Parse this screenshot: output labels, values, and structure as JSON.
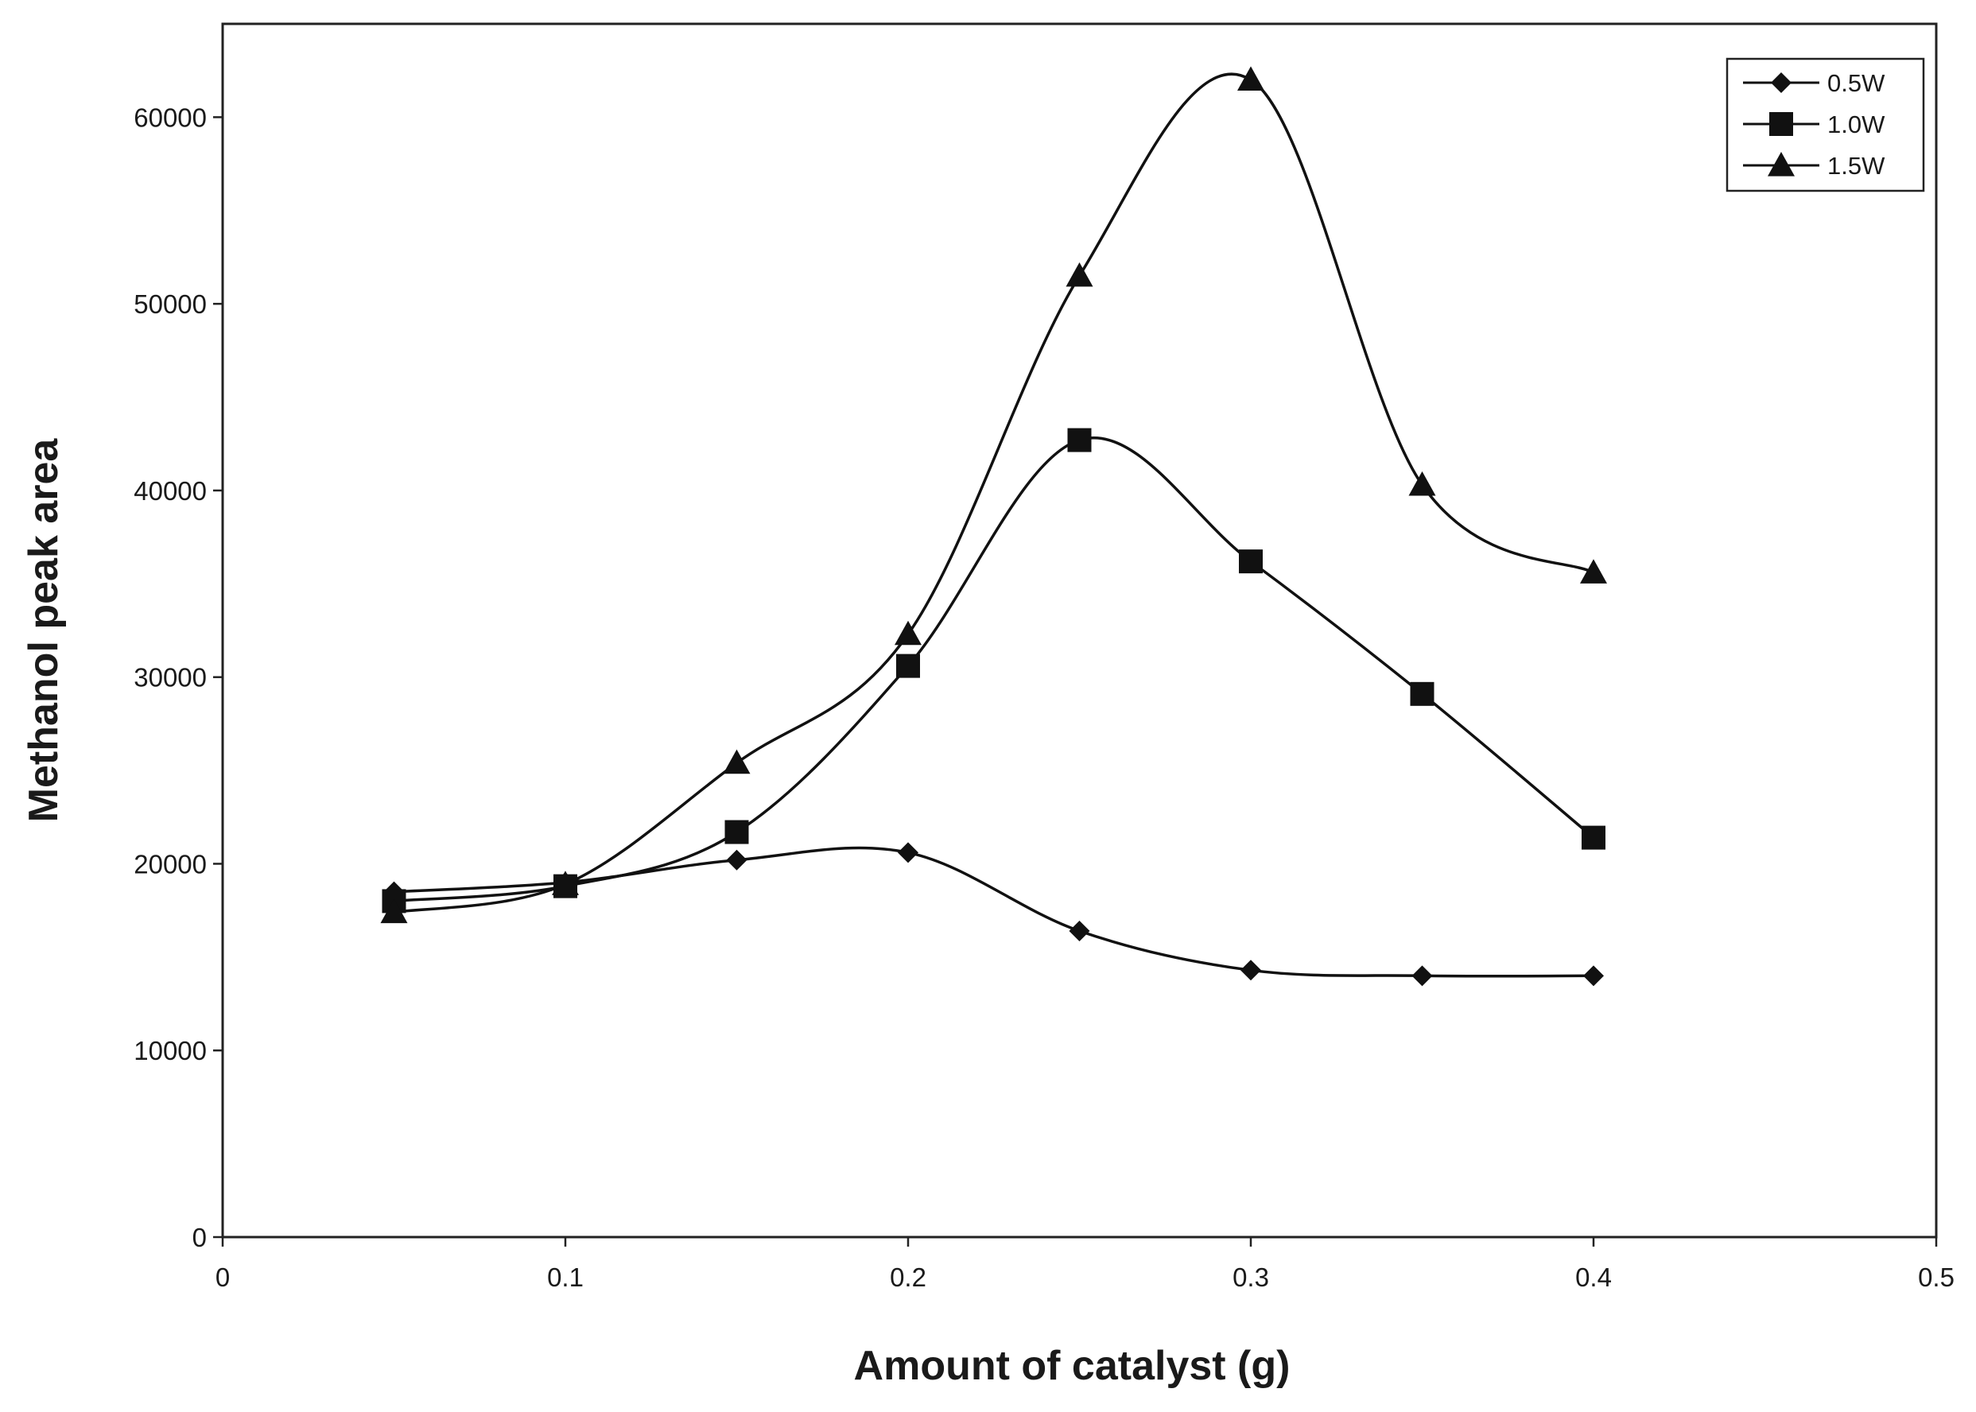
{
  "chart_data": {
    "type": "line",
    "title": "",
    "xlabel": "Amount of catalyst (g)",
    "ylabel": "Methanol peak area",
    "xlim": [
      0,
      0.5
    ],
    "ylim": [
      0,
      65000
    ],
    "x_ticks": [
      "0",
      "0.1",
      "0.2",
      "0.3",
      "0.4",
      "0.5"
    ],
    "y_ticks": [
      "0",
      "10000",
      "20000",
      "30000",
      "40000",
      "50000",
      "60000"
    ],
    "grid": false,
    "legend_position": "top-right",
    "line_color": "#111111",
    "series": [
      {
        "name": "0.5W",
        "marker": "diamond",
        "x": [
          0.05,
          0.1,
          0.15,
          0.2,
          0.25,
          0.3,
          0.35,
          0.4
        ],
        "y": [
          18500,
          19000,
          20200,
          20600,
          16400,
          14300,
          14000,
          14000
        ]
      },
      {
        "name": "1.0W",
        "marker": "square",
        "x": [
          0.05,
          0.1,
          0.15,
          0.2,
          0.25,
          0.3,
          0.35,
          0.4
        ],
        "y": [
          18000,
          18800,
          21700,
          30600,
          42700,
          36200,
          29100,
          21400
        ]
      },
      {
        "name": "1.5W",
        "marker": "triangle",
        "x": [
          0.05,
          0.1,
          0.15,
          0.2,
          0.25,
          0.3,
          0.35,
          0.4
        ],
        "y": [
          17400,
          18900,
          25400,
          32300,
          51500,
          62000,
          40300,
          35600
        ]
      }
    ]
  }
}
